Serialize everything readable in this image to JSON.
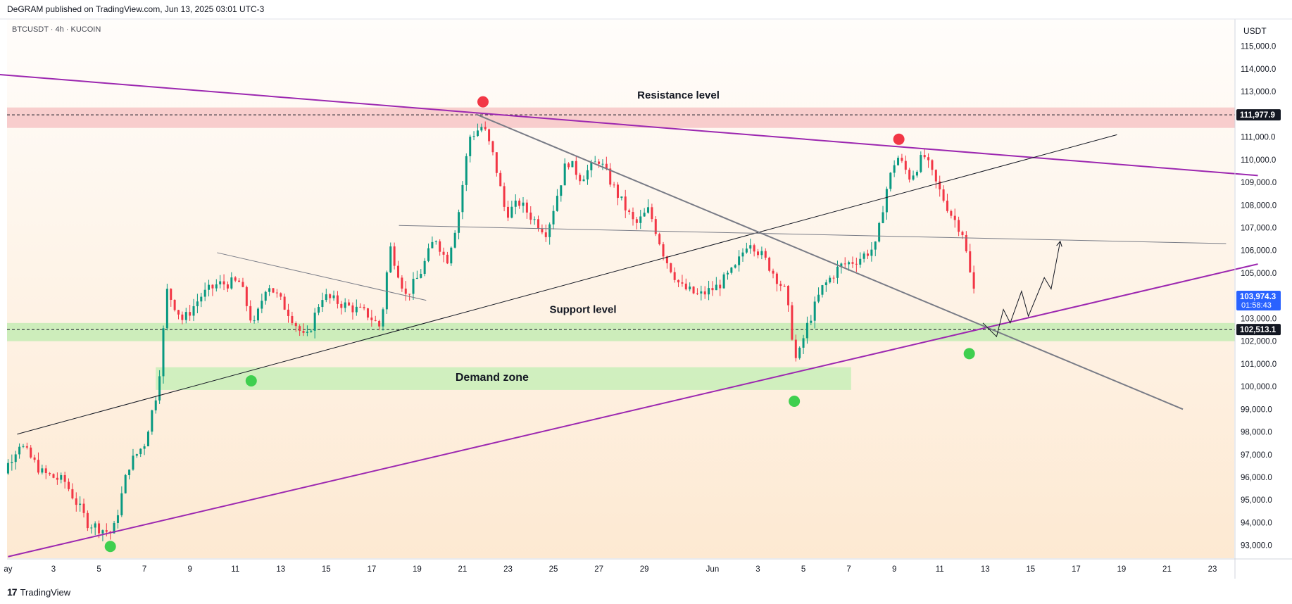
{
  "header": {
    "published": "DeGRAM published on TradingView.com, Jun 13, 2025 03:01 UTC-3"
  },
  "footer": {
    "logo_icon": "tradingview-logo-icon",
    "logo_text": "TradingView"
  },
  "chart_data": {
    "type": "candlestick",
    "symbol_line": "BTCUSDT · 4h · KUCOIN",
    "currency": "USDT",
    "ylim": [
      92400,
      116200
    ],
    "x_days": [
      0,
      56
    ],
    "y_ticks": [
      "115,000.0",
      "114,000.0",
      "113,000.0",
      "111,000.0",
      "110,000.0",
      "109,000.0",
      "108,000.0",
      "107,000.0",
      "106,000.0",
      "105,000.0",
      "103,000.0",
      "102,000.0",
      "101,000.0",
      "100,000.0",
      "99,000.0",
      "98,000.0",
      "97,000.0",
      "96,000.0",
      "95,000.0",
      "94,000.0",
      "93,000.0"
    ],
    "y_tick_values": [
      115000,
      114000,
      113000,
      111000,
      110000,
      109000,
      108000,
      107000,
      106000,
      105000,
      103000,
      102000,
      101000,
      100000,
      99000,
      98000,
      97000,
      96000,
      95000,
      94000,
      93000
    ],
    "x_ticks": [
      {
        "label": "ay",
        "day": 1
      },
      {
        "label": "3",
        "day": 3
      },
      {
        "label": "5",
        "day": 5
      },
      {
        "label": "7",
        "day": 7
      },
      {
        "label": "9",
        "day": 9
      },
      {
        "label": "11",
        "day": 11
      },
      {
        "label": "13",
        "day": 13
      },
      {
        "label": "15",
        "day": 15
      },
      {
        "label": "17",
        "day": 17
      },
      {
        "label": "19",
        "day": 19
      },
      {
        "label": "21",
        "day": 21
      },
      {
        "label": "23",
        "day": 23
      },
      {
        "label": "25",
        "day": 25
      },
      {
        "label": "27",
        "day": 27
      },
      {
        "label": "29",
        "day": 29
      },
      {
        "label": "Jun",
        "day": 32
      },
      {
        "label": "3",
        "day": 34
      },
      {
        "label": "5",
        "day": 36
      },
      {
        "label": "7",
        "day": 38
      },
      {
        "label": "9",
        "day": 40
      },
      {
        "label": "11",
        "day": 42
      },
      {
        "label": "13",
        "day": 44
      },
      {
        "label": "15",
        "day": 46
      },
      {
        "label": "17",
        "day": 48
      },
      {
        "label": "19",
        "day": 50
      },
      {
        "label": "21",
        "day": 52
      },
      {
        "label": "23",
        "day": 54
      }
    ],
    "price_badges": [
      {
        "value": 111977.9,
        "label": "111,977.9",
        "color": "#131722"
      },
      {
        "value": 103974.3,
        "label": "103,974.3",
        "sublabel": "01:58:43",
        "color": "#2962ff"
      },
      {
        "value": 102513.1,
        "label": "102,513.1",
        "color": "#131722"
      }
    ],
    "dashed_lines": [
      111977.9,
      102513.1
    ],
    "zones": [
      {
        "name": "Resistance level",
        "d0": 0,
        "d1": 56,
        "y0": 111400,
        "y1": 112300,
        "color": "#f7c6c6"
      },
      {
        "name": "Support level",
        "d0": 0,
        "d1": 56,
        "y0": 102000,
        "y1": 102800,
        "color": "#c4ecb4"
      },
      {
        "name": "Demand zone",
        "d0": 7.5,
        "d1": 38.1,
        "y0": 99850,
        "y1": 100850,
        "color": "#c8eeb8"
      }
    ],
    "annotations": [
      {
        "text": "Resistance level",
        "day": 30.5,
        "value": 112850
      },
      {
        "text": "Support level",
        "day": 26.3,
        "value": 103400
      },
      {
        "text": "Demand zone",
        "day": 22.3,
        "value": 100400
      }
    ],
    "trendlines": [
      {
        "d0": 0,
        "v0": 113800,
        "d1": 56,
        "v1": 109300,
        "color": "#9c27b0",
        "width": 2
      },
      {
        "d0": 1,
        "v0": 92500,
        "d1": 56,
        "v1": 105400,
        "color": "#9c27b0",
        "width": 2
      },
      {
        "d0": 1.4,
        "v0": 97900,
        "d1": 49.8,
        "v1": 111100,
        "color": "#131722",
        "width": 1
      },
      {
        "d0": 21.6,
        "v0": 112000,
        "d1": 52.7,
        "v1": 99000,
        "color": "#787b86",
        "width": 2
      },
      {
        "d0": 18.2,
        "v0": 107100,
        "d1": 54.6,
        "v1": 106300,
        "color": "#787b86",
        "width": 1
      },
      {
        "d0": 10.2,
        "v0": 105900,
        "d1": 19.4,
        "v1": 103800,
        "color": "#787b86",
        "width": 1
      }
    ],
    "projection": [
      {
        "day": 43.9,
        "value": 102800
      },
      {
        "day": 44.5,
        "value": 102200
      },
      {
        "day": 44.8,
        "value": 103400
      },
      {
        "day": 45.1,
        "value": 102800
      },
      {
        "day": 45.6,
        "value": 104200
      },
      {
        "day": 45.9,
        "value": 103100
      },
      {
        "day": 46.6,
        "value": 104800
      },
      {
        "day": 46.9,
        "value": 104300
      },
      {
        "day": 47.3,
        "value": 106400
      }
    ],
    "markers": [
      {
        "day": 21.9,
        "value": 112550,
        "color": "#f23645"
      },
      {
        "day": 40.2,
        "value": 110900,
        "color": "#f23645"
      },
      {
        "day": 5.5,
        "value": 92950,
        "color": "#3fcf4f"
      },
      {
        "day": 11.7,
        "value": 100250,
        "color": "#3fcf4f"
      },
      {
        "day": 35.6,
        "value": 99350,
        "color": "#3fcf4f"
      },
      {
        "day": 43.3,
        "value": 101450,
        "color": "#3fcf4f"
      }
    ],
    "price_path": [
      {
        "day": 0,
        "value": 94800
      },
      {
        "day": 1.5,
        "value": 97500
      },
      {
        "day": 2.5,
        "value": 96200
      },
      {
        "day": 3.5,
        "value": 95800
      },
      {
        "day": 4.5,
        "value": 94000
      },
      {
        "day": 5.6,
        "value": 93500
      },
      {
        "day": 6.3,
        "value": 96500
      },
      {
        "day": 7.0,
        "value": 97500
      },
      {
        "day": 7.6,
        "value": 100000
      },
      {
        "day": 8.0,
        "value": 104200
      },
      {
        "day": 8.7,
        "value": 102900
      },
      {
        "day": 9.5,
        "value": 104000
      },
      {
        "day": 10.2,
        "value": 104500
      },
      {
        "day": 11.2,
        "value": 104600
      },
      {
        "day": 11.8,
        "value": 102600
      },
      {
        "day": 12.4,
        "value": 104600
      },
      {
        "day": 13.4,
        "value": 103200
      },
      {
        "day": 14.1,
        "value": 102000
      },
      {
        "day": 14.8,
        "value": 104000
      },
      {
        "day": 15.8,
        "value": 103600
      },
      {
        "day": 16.8,
        "value": 103200
      },
      {
        "day": 17.4,
        "value": 102600
      },
      {
        "day": 17.8,
        "value": 106200
      },
      {
        "day": 18.5,
        "value": 104000
      },
      {
        "day": 19.1,
        "value": 104900
      },
      {
        "day": 19.8,
        "value": 106600
      },
      {
        "day": 20.3,
        "value": 105500
      },
      {
        "day": 20.8,
        "value": 107500
      },
      {
        "day": 21.3,
        "value": 111000
      },
      {
        "day": 21.9,
        "value": 111500
      },
      {
        "day": 22.4,
        "value": 110000
      },
      {
        "day": 22.9,
        "value": 107600
      },
      {
        "day": 23.5,
        "value": 108100
      },
      {
        "day": 24.1,
        "value": 107400
      },
      {
        "day": 24.7,
        "value": 106800
      },
      {
        "day": 25.6,
        "value": 110000
      },
      {
        "day": 26.2,
        "value": 109200
      },
      {
        "day": 27.0,
        "value": 110000
      },
      {
        "day": 27.8,
        "value": 108500
      },
      {
        "day": 28.6,
        "value": 107100
      },
      {
        "day": 29.2,
        "value": 107800
      },
      {
        "day": 29.9,
        "value": 105700
      },
      {
        "day": 30.6,
        "value": 104400
      },
      {
        "day": 31.4,
        "value": 104000
      },
      {
        "day": 32.2,
        "value": 104400
      },
      {
        "day": 33.0,
        "value": 105200
      },
      {
        "day": 33.6,
        "value": 106500
      },
      {
        "day": 34.3,
        "value": 105600
      },
      {
        "day": 35.2,
        "value": 104200
      },
      {
        "day": 35.7,
        "value": 101000
      },
      {
        "day": 36.1,
        "value": 102500
      },
      {
        "day": 36.8,
        "value": 104300
      },
      {
        "day": 37.6,
        "value": 105300
      },
      {
        "day": 38.4,
        "value": 105600
      },
      {
        "day": 39.2,
        "value": 106200
      },
      {
        "day": 39.6,
        "value": 108500
      },
      {
        "day": 40.1,
        "value": 110200
      },
      {
        "day": 40.7,
        "value": 109200
      },
      {
        "day": 41.3,
        "value": 110200
      },
      {
        "day": 41.9,
        "value": 108800
      },
      {
        "day": 42.5,
        "value": 107600
      },
      {
        "day": 43.0,
        "value": 106800
      },
      {
        "day": 43.4,
        "value": 104600
      },
      {
        "day": 43.6,
        "value": 103900
      }
    ]
  }
}
